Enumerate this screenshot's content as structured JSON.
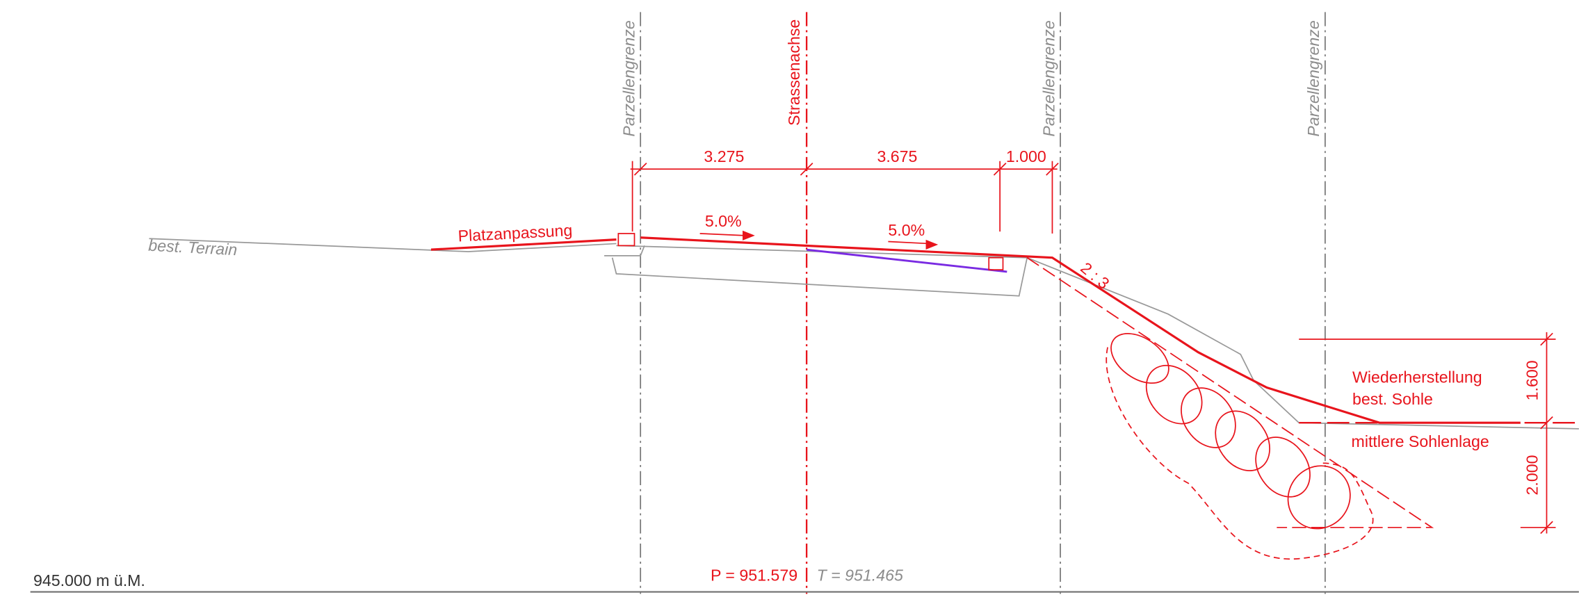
{
  "drawing": {
    "property_lines": [
      "Parzellengrenze",
      "Parzellengrenze",
      "Parzellengrenze"
    ],
    "axis_label": "Strassenachse",
    "dimensions": [
      "3.275",
      "3.675",
      "1.000"
    ],
    "slopes": [
      "5.0%",
      "5.0%"
    ],
    "embankment_slope": "2 : 3",
    "labels": {
      "platz": "Platzanpassung",
      "terrain": "best. Terrain",
      "restore_1": "Wiederherstellung",
      "restore_2": "best. Sohle",
      "mean_bed": "mittlere Sohlenlage"
    },
    "right_dimensions": [
      "1.600",
      "2.000"
    ],
    "datum": "945.000 m ü.M.",
    "project_height": "P = 951.579",
    "terrain_height": "T = 951.465"
  }
}
